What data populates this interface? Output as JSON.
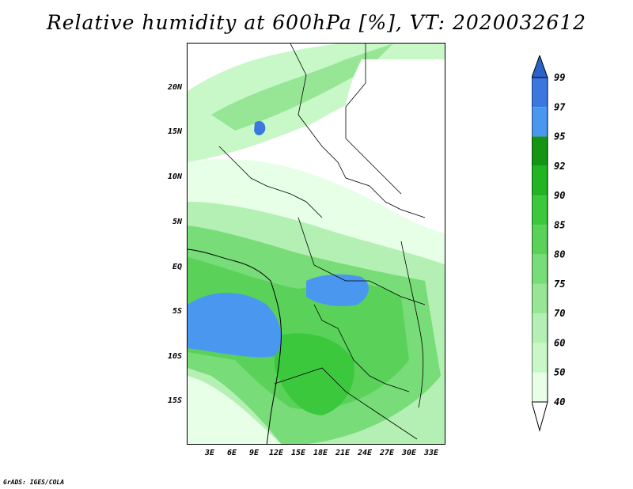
{
  "title": "Relative humidity at 600hPa [%], VT: 2020032612",
  "credit": "GrADS: IGES/COLA",
  "map": {
    "y_labels": [
      "20N",
      "15N",
      "10N",
      "5N",
      "EQ",
      "5S",
      "10S",
      "15S"
    ],
    "x_labels": [
      "3E",
      "6E",
      "9E",
      "12E",
      "15E",
      "18E",
      "21E",
      "24E",
      "27E",
      "30E",
      "33E"
    ]
  },
  "colorbar": {
    "levels": [
      "40",
      "50",
      "60",
      "70",
      "75",
      "80",
      "85",
      "90",
      "92",
      "95",
      "97",
      "99"
    ],
    "colors": [
      "#ffffff",
      "#e6ffe6",
      "#c8f8c8",
      "#b4f0b4",
      "#96e696",
      "#78dc78",
      "#5ad25a",
      "#3cc83c",
      "#22b422",
      "#149614",
      "#4a97f0",
      "#3a78e0",
      "#2a62c8"
    ]
  }
}
